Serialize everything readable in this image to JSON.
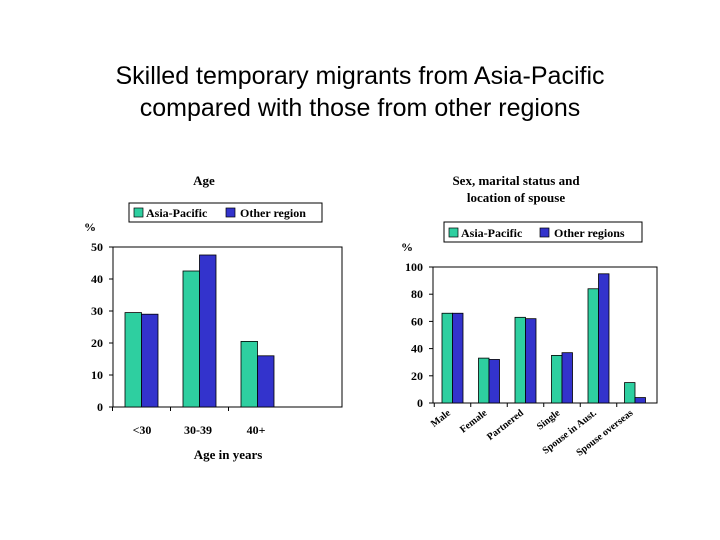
{
  "slide": {
    "title_line1": "Skilled temporary migrants from Asia-Pacific",
    "title_line2": "compared with those from other regions"
  },
  "colors": {
    "asia_pacific": "#2ecfa0",
    "other": "#3333cc"
  },
  "chart_data": [
    {
      "type": "bar",
      "title": "Age",
      "ylabel": "%",
      "xlabel": "Age in years",
      "ylim": [
        0,
        50
      ],
      "yticks": [
        "0",
        "10",
        "20",
        "30",
        "40",
        "50"
      ],
      "categories": [
        "<30",
        "30-39",
        "40+"
      ],
      "series": [
        {
          "name": "Asia-Pacific",
          "values": [
            29.5,
            42.5,
            20.5
          ]
        },
        {
          "name": "Other region",
          "values": [
            29,
            47.5,
            16
          ]
        }
      ],
      "grid": false,
      "legend": "top"
    },
    {
      "type": "bar",
      "title_line1": "Sex, marital status and",
      "title_line2": "location of spouse",
      "ylabel": "%",
      "xlabel": "",
      "ylim": [
        0,
        100
      ],
      "yticks": [
        "0",
        "20",
        "40",
        "60",
        "80",
        "100"
      ],
      "categories": [
        "Male",
        "Female",
        "Partnered",
        "Single",
        "Spouse in Aust.",
        "Spouse overseas"
      ],
      "series": [
        {
          "name": "Asia-Pacific",
          "values": [
            66,
            33,
            63,
            35,
            84,
            15
          ]
        },
        {
          "name": "Other regions",
          "values": [
            66,
            32,
            62,
            37,
            95,
            4
          ]
        }
      ],
      "grid": false,
      "legend": "top"
    }
  ]
}
